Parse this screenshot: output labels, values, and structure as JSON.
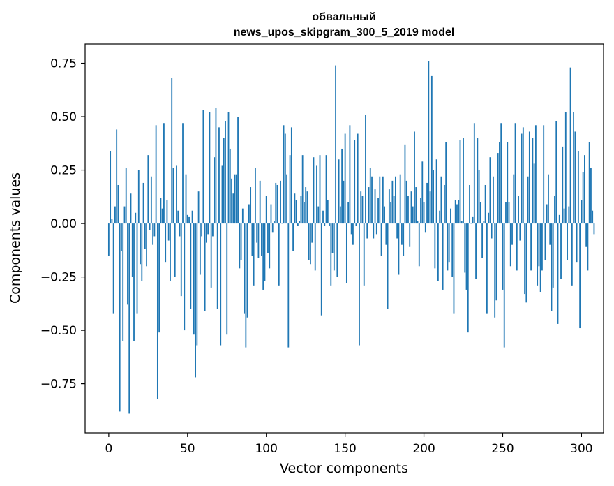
{
  "chart_data": {
    "type": "bar",
    "title": "обвальный",
    "subtitle": "news_upos_skipgram_300_5_2019 model",
    "xlabel": "Vector components",
    "ylabel": "Components values",
    "xlim": [
      -15,
      314
    ],
    "ylim": [
      -0.98,
      0.84
    ],
    "xticks": [
      0,
      50,
      100,
      150,
      200,
      250,
      300
    ],
    "xtick_labels": [
      "0",
      "50",
      "100",
      "150",
      "200",
      "250",
      "300"
    ],
    "yticks": [
      -0.75,
      -0.5,
      -0.25,
      0.0,
      0.25,
      0.5,
      0.75
    ],
    "ytick_labels": [
      "−0.75",
      "−0.50",
      "−0.25",
      "0.00",
      "0.25",
      "0.50",
      "0.75"
    ],
    "grid": false,
    "bar_color": "#1f77b4",
    "x_start": 0,
    "values": [
      -0.15,
      0.34,
      0.02,
      -0.42,
      0.08,
      0.44,
      0.18,
      -0.88,
      -0.13,
      -0.55,
      0.08,
      0.26,
      -0.38,
      -0.89,
      0.14,
      -0.25,
      -0.55,
      0.05,
      -0.42,
      0.25,
      -0.19,
      -0.27,
      0.19,
      -0.12,
      -0.2,
      0.32,
      -0.03,
      0.22,
      -0.1,
      -0.06,
      0.46,
      -0.82,
      -0.51,
      0.12,
      0.07,
      0.47,
      -0.18,
      0.11,
      -0.08,
      -0.27,
      0.68,
      0.26,
      -0.25,
      0.27,
      0.06,
      -0.06,
      -0.34,
      0.47,
      -0.5,
      0.23,
      0.04,
      0.03,
      -0.4,
      0.06,
      -0.52,
      -0.72,
      -0.57,
      0.15,
      -0.24,
      -0.06,
      0.53,
      -0.41,
      -0.09,
      -0.05,
      0.52,
      -0.3,
      -0.06,
      0.31,
      0.54,
      -0.4,
      0.45,
      -0.57,
      0.27,
      0.4,
      0.48,
      -0.52,
      0.52,
      0.35,
      0.21,
      0.14,
      0.23,
      0.23,
      0.5,
      -0.21,
      -0.17,
      0.07,
      -0.42,
      -0.58,
      -0.44,
      0.09,
      0.17,
      -0.15,
      -0.29,
      0.26,
      -0.09,
      -0.16,
      0.2,
      -0.15,
      -0.31,
      -0.27,
      0.13,
      -0.14,
      -0.21,
      0.09,
      -0.04,
      0.01,
      0.19,
      0.18,
      -0.29,
      0.2,
      0.0,
      0.46,
      0.42,
      0.23,
      -0.58,
      0.32,
      0.45,
      -0.13,
      0.14,
      0.11,
      -0.01,
      0.01,
      0.13,
      0.32,
      0.1,
      0.17,
      0.15,
      -0.17,
      -0.19,
      -0.09,
      0.31,
      -0.22,
      0.27,
      0.08,
      0.32,
      -0.43,
      0.06,
      -0.01,
      0.32,
      0.11,
      -0.01,
      -0.29,
      -0.14,
      -0.22,
      0.74,
      -0.25,
      0.3,
      0.08,
      0.35,
      0.2,
      0.42,
      -0.28,
      0.1,
      0.46,
      -0.05,
      -0.1,
      0.39,
      -0.01,
      0.42,
      -0.57,
      0.15,
      0.13,
      -0.29,
      0.51,
      -0.07,
      0.17,
      0.26,
      0.22,
      -0.07,
      0.16,
      -0.05,
      0.12,
      0.22,
      -0.15,
      0.22,
      0.08,
      -0.1,
      -0.4,
      0.16,
      0.1,
      0.2,
      0.13,
      0.22,
      -0.07,
      -0.24,
      0.23,
      -0.1,
      -0.15,
      0.37,
      0.2,
      0.13,
      -0.11,
      0.15,
      0.08,
      0.43,
      0.17,
      0.01,
      -0.2,
      0.12,
      0.29,
      0.1,
      -0.04,
      0.19,
      0.76,
      0.15,
      0.69,
      0.25,
      -0.21,
      0.3,
      -0.27,
      0.06,
      0.22,
      -0.31,
      0.18,
      0.38,
      -0.22,
      -0.18,
      0.07,
      -0.25,
      -0.42,
      0.11,
      0.09,
      0.11,
      0.39,
      0.01,
      0.4,
      -0.23,
      -0.31,
      -0.51,
      0.18,
      0.0,
      0.03,
      0.47,
      -0.26,
      0.4,
      0.25,
      0.1,
      -0.16,
      0.01,
      0.18,
      -0.42,
      0.05,
      0.31,
      -0.07,
      0.22,
      -0.44,
      -0.36,
      0.33,
      0.38,
      0.47,
      -0.31,
      -0.58,
      0.1,
      0.38,
      0.1,
      -0.2,
      -0.1,
      0.23,
      0.47,
      -0.22,
      0.13,
      -0.08,
      0.42,
      0.45,
      -0.33,
      -0.37,
      0.22,
      0.43,
      -0.22,
      0.4,
      0.28,
      0.46,
      -0.29,
      -0.2,
      -0.32,
      -0.22,
      0.46,
      -0.17,
      0.09,
      0.23,
      -0.1,
      -0.41,
      -0.3,
      0.13,
      0.48,
      -0.47,
      0.04,
      -0.26,
      0.36,
      0.07,
      0.52,
      -0.17,
      0.08,
      0.73,
      -0.29,
      0.52,
      0.43,
      -0.18,
      0.34,
      -0.49,
      0.11,
      0.24,
      0.32,
      -0.11,
      -0.22,
      0.38,
      0.26,
      0.06,
      -0.05
    ]
  }
}
